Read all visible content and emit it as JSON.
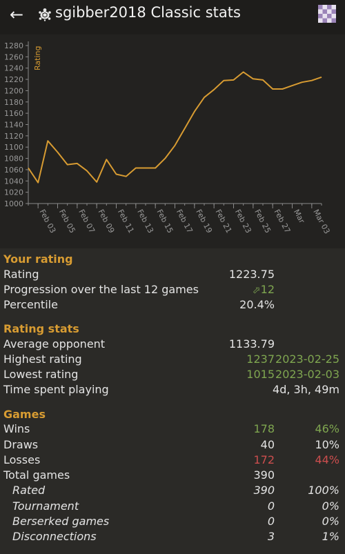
{
  "header": {
    "title": "sgibber2018 Classic stats",
    "back_icon": "arrow-left-icon",
    "perf_icon": "turtle-icon",
    "board_icon": "checkerboard-icon"
  },
  "chart_data": {
    "type": "line",
    "title": "",
    "ylabel": "Rating",
    "xlabel": "",
    "ylim": [
      1000,
      1280
    ],
    "yticks": [
      1000,
      1020,
      1040,
      1060,
      1080,
      1100,
      1120,
      1140,
      1160,
      1180,
      1200,
      1220,
      1240,
      1260,
      1280
    ],
    "xlim": [
      "2023-02-02",
      "2023-03-04"
    ],
    "xticks": [
      {
        "date": "2023-02-03",
        "label": "Feb 03"
      },
      {
        "date": "2023-02-05",
        "label": "Feb 05"
      },
      {
        "date": "2023-02-07",
        "label": "Feb 07"
      },
      {
        "date": "2023-02-09",
        "label": "Feb 09"
      },
      {
        "date": "2023-02-11",
        "label": "Feb 11"
      },
      {
        "date": "2023-02-13",
        "label": "Feb 13"
      },
      {
        "date": "2023-02-15",
        "label": "Feb 15"
      },
      {
        "date": "2023-02-17",
        "label": "Feb 17"
      },
      {
        "date": "2023-02-19",
        "label": "Feb 19"
      },
      {
        "date": "2023-02-21",
        "label": "Feb 21"
      },
      {
        "date": "2023-02-23",
        "label": "Feb 23"
      },
      {
        "date": "2023-02-25",
        "label": "Feb 25"
      },
      {
        "date": "2023-02-27",
        "label": "Feb 27"
      },
      {
        "date": "2023-03-01",
        "label": "Mar"
      },
      {
        "date": "2023-03-03",
        "label": "Mar 03"
      }
    ],
    "series": [
      {
        "color": "#d89c32",
        "points": [
          [
            "2023-02-02",
            1063
          ],
          [
            "2023-02-03",
            1037
          ],
          [
            "2023-02-04",
            1111
          ],
          [
            "2023-02-05",
            1091
          ],
          [
            "2023-02-06",
            1069
          ],
          [
            "2023-02-07",
            1071
          ],
          [
            "2023-02-08",
            1058
          ],
          [
            "2023-02-09",
            1038
          ],
          [
            "2023-02-10",
            1078
          ],
          [
            "2023-02-11",
            1052
          ],
          [
            "2023-02-12",
            1048
          ],
          [
            "2023-02-13",
            1063
          ],
          [
            "2023-02-14",
            1063
          ],
          [
            "2023-02-15",
            1063
          ],
          [
            "2023-02-16",
            1080
          ],
          [
            "2023-02-17",
            1103
          ],
          [
            "2023-02-18",
            1133
          ],
          [
            "2023-02-19",
            1163
          ],
          [
            "2023-02-20",
            1188
          ],
          [
            "2023-02-21",
            1202
          ],
          [
            "2023-02-22",
            1218
          ],
          [
            "2023-02-23",
            1219
          ],
          [
            "2023-02-24",
            1233
          ],
          [
            "2023-02-25",
            1221
          ],
          [
            "2023-02-26",
            1219
          ],
          [
            "2023-02-27",
            1203
          ],
          [
            "2023-02-28",
            1203
          ],
          [
            "2023-03-01",
            1209
          ],
          [
            "2023-03-02",
            1215
          ],
          [
            "2023-03-03",
            1218
          ],
          [
            "2023-03-04",
            1224
          ]
        ]
      }
    ],
    "grid": false
  },
  "your_rating": {
    "title": "Your rating",
    "rating_label": "Rating",
    "rating_value": "1223.75",
    "progression_label": "Progression over the last 12 games",
    "progression_icon": "arrow-up-right-icon",
    "progression_value": "12",
    "percentile_label": "Percentile",
    "percentile_value": "20.4%"
  },
  "rating_stats": {
    "title": "Rating stats",
    "avg_label": "Average opponent",
    "avg_value": "1133.79",
    "highest_label": "Highest rating",
    "highest_value": "1237",
    "highest_date": "2023-02-25",
    "lowest_label": "Lowest rating",
    "lowest_value": "1015",
    "lowest_date": "2023-02-03",
    "time_label": "Time spent playing",
    "time_value": "4d, 3h, 49m"
  },
  "games": {
    "title": "Games",
    "wins_label": "Wins",
    "wins_value": "178",
    "wins_pct": "46%",
    "draws_label": "Draws",
    "draws_value": "40",
    "draws_pct": "10%",
    "losses_label": "Losses",
    "losses_value": "172",
    "losses_pct": "44%",
    "total_label": "Total games",
    "total_value": "390",
    "rated_label": "Rated",
    "rated_value": "390",
    "rated_pct": "100%",
    "tournament_label": "Tournament",
    "tournament_value": "0",
    "tournament_pct": "0%",
    "berserk_label": "Berserked games",
    "berserk_value": "0",
    "berserk_pct": "0%",
    "disc_label": "Disconnections",
    "disc_value": "3",
    "disc_pct": "1%"
  }
}
